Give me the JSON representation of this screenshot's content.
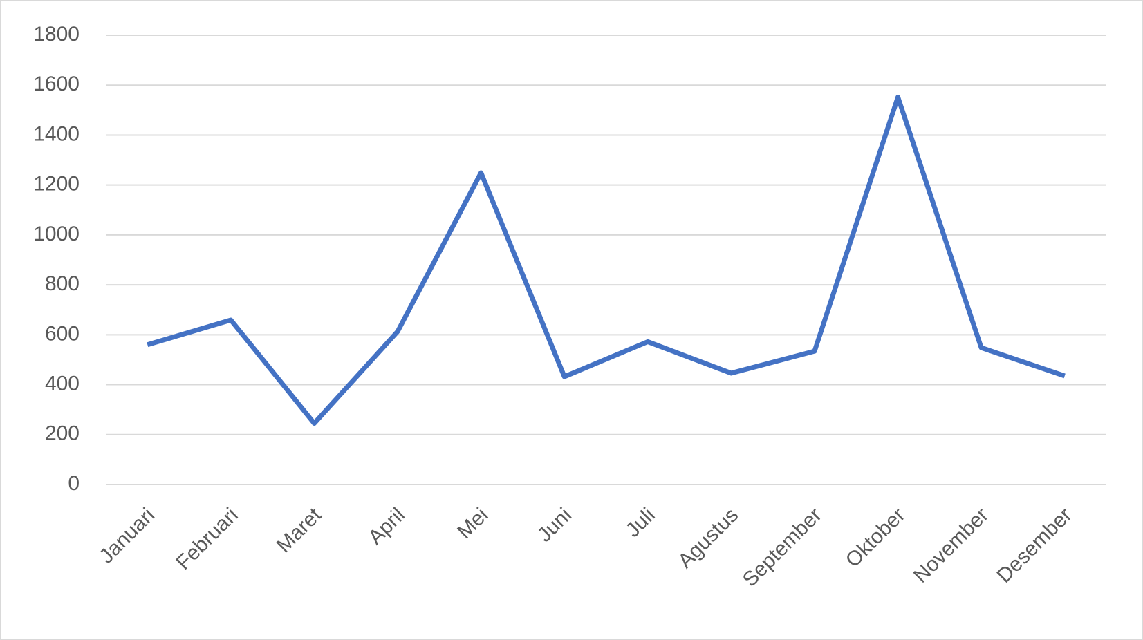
{
  "chart_data": {
    "type": "line",
    "categories": [
      "Januari",
      "Februari",
      "Maret",
      "April",
      "Mei",
      "Juni",
      "Juli",
      "Agustus",
      "September",
      "Oktober",
      "November",
      "Desember"
    ],
    "series": [
      {
        "color": "#4472c4",
        "values": [
          560,
          659,
          245,
          613,
          1249,
          432,
          572,
          446,
          534,
          1552,
          548,
          435
        ]
      }
    ],
    "ylim": [
      0,
      1800
    ],
    "yticks": [
      0,
      200,
      400,
      600,
      800,
      1000,
      1200,
      1400,
      1600,
      1800
    ],
    "grid": true
  }
}
